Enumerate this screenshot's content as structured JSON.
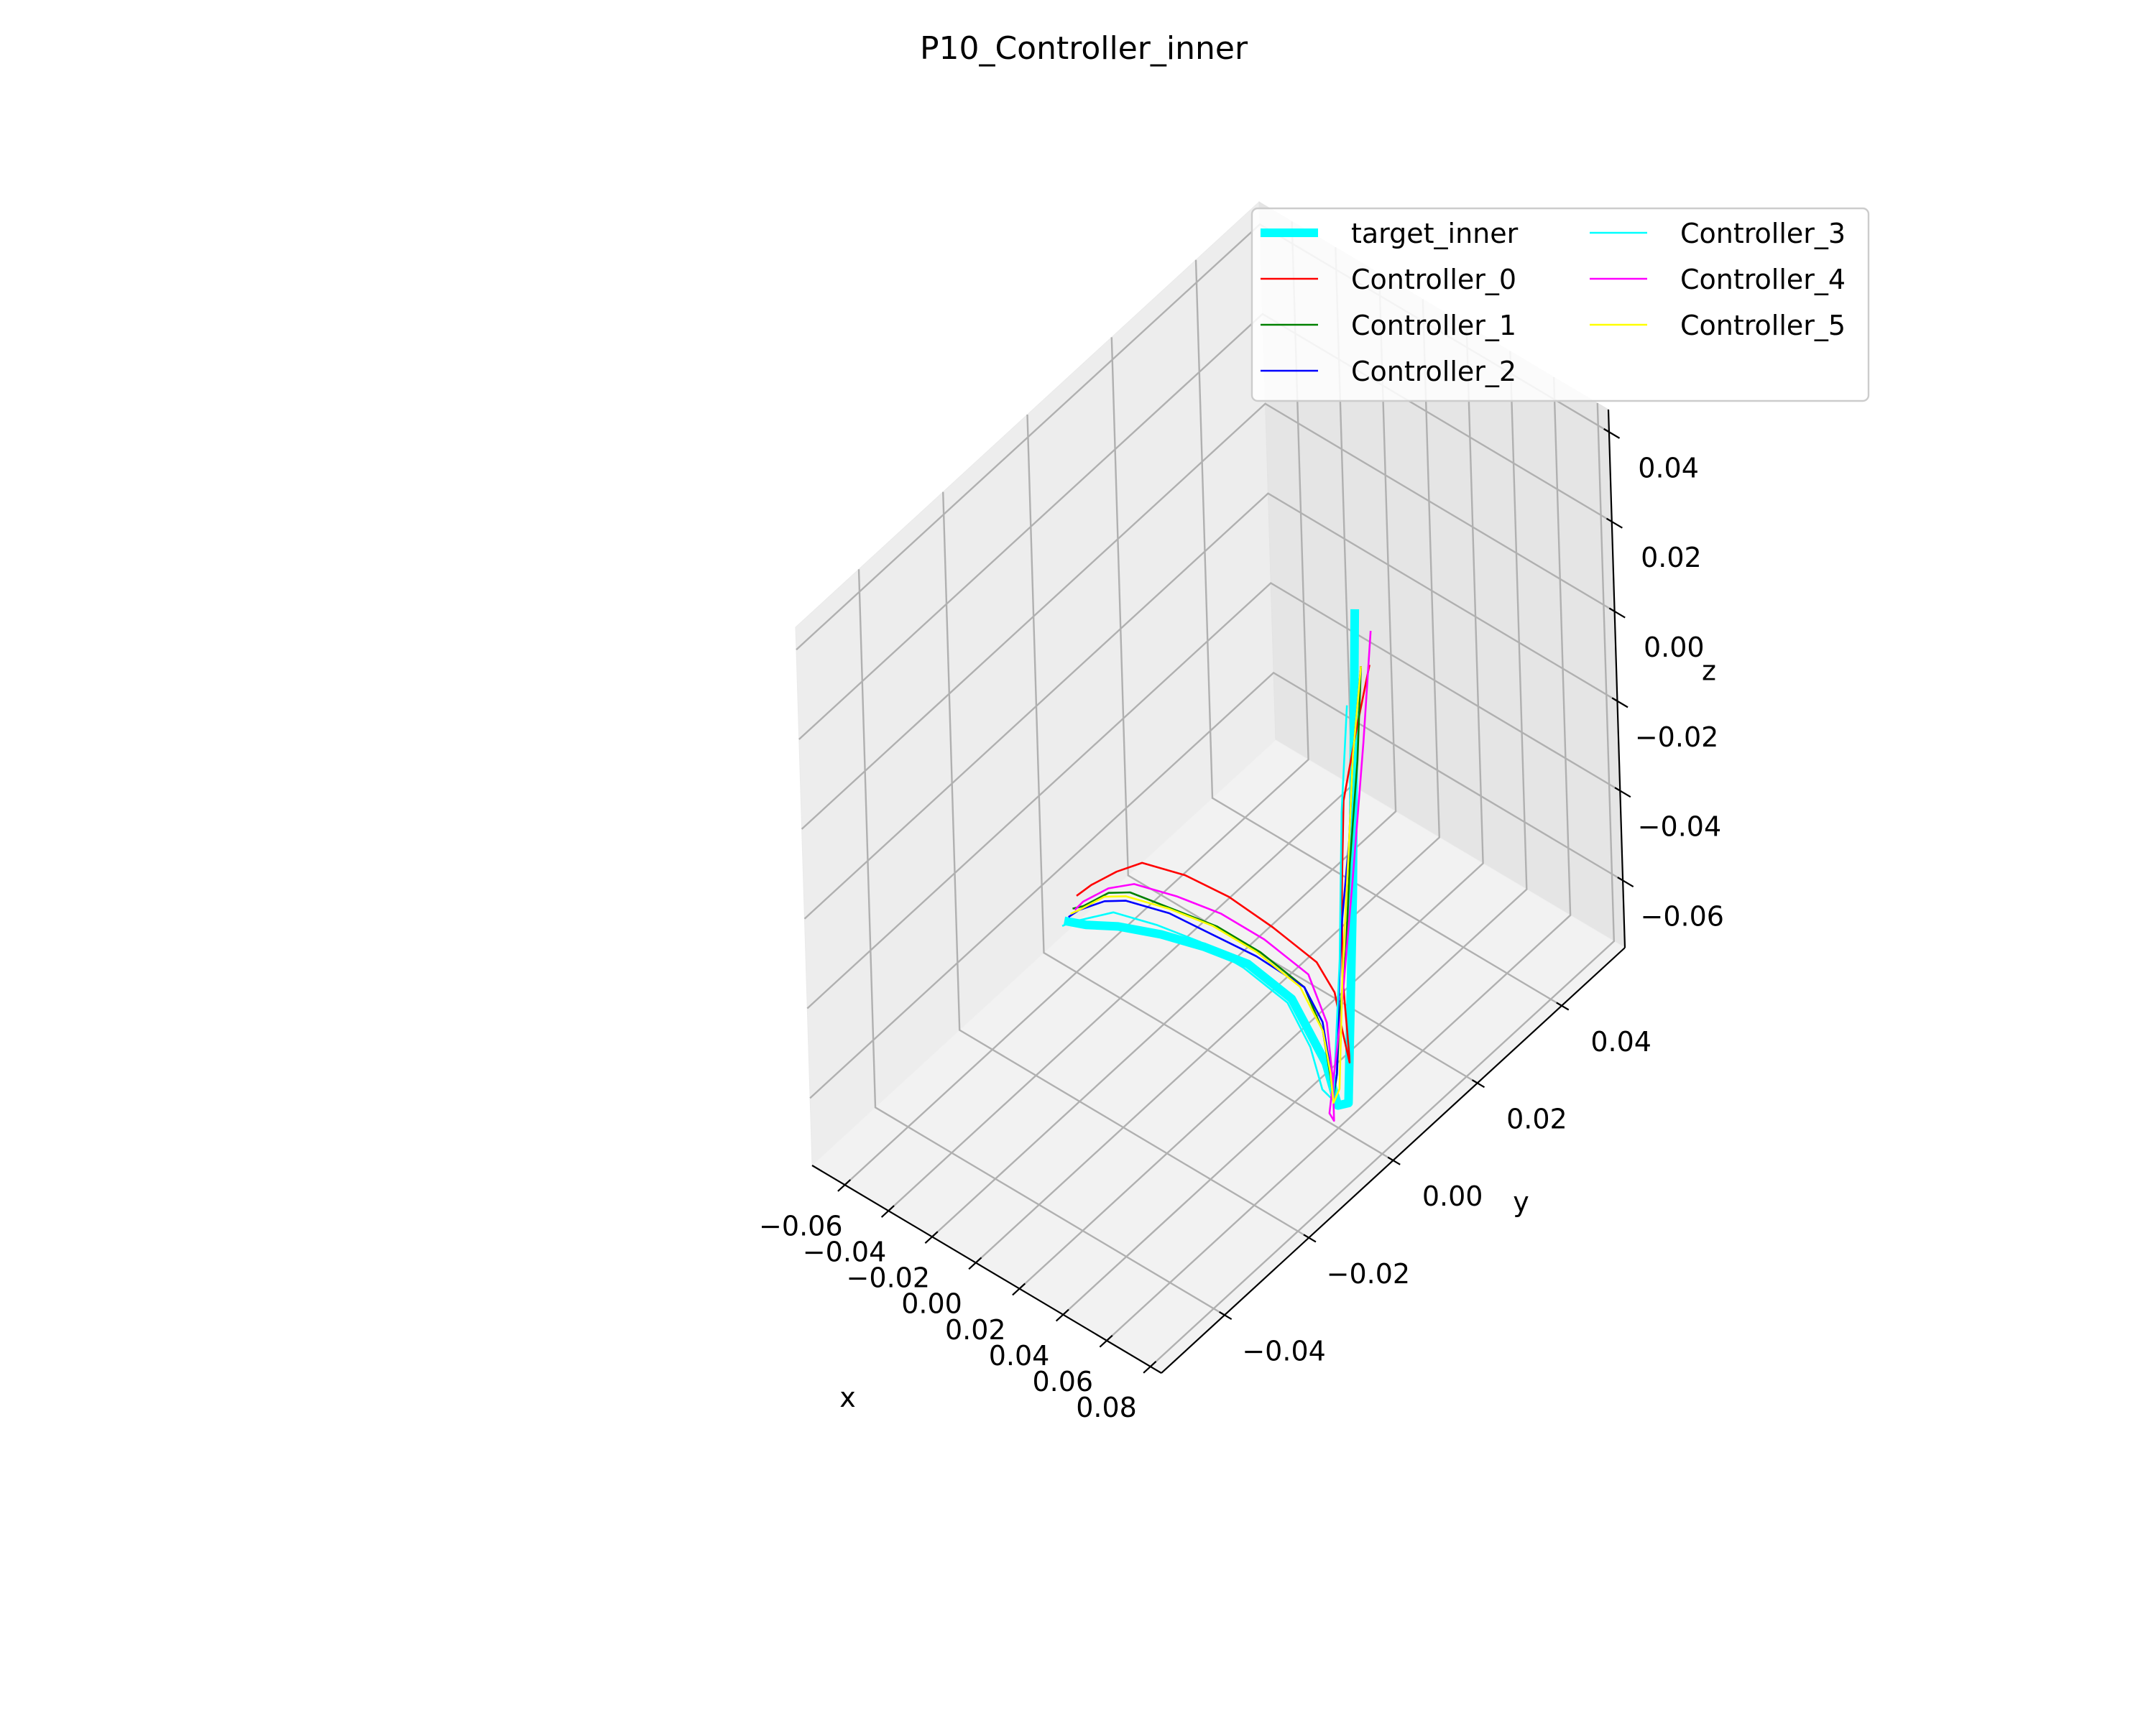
{
  "chart_data": {
    "type": "line",
    "projection": "3d",
    "title": "P10_Controller_inner",
    "xlabel": "x",
    "ylabel": "y",
    "zlabel": "z",
    "xlim": [
      -0.075,
      0.085
    ],
    "ylim": [
      -0.055,
      0.055
    ],
    "zlim": [
      -0.075,
      0.045
    ],
    "xticks": [
      -0.06,
      -0.04,
      -0.02,
      0.0,
      0.02,
      0.04,
      0.06,
      0.08
    ],
    "yticks": [
      -0.04,
      -0.02,
      0.0,
      0.02,
      0.04
    ],
    "zticks": [
      -0.06,
      -0.04,
      -0.02,
      0.0,
      0.02,
      0.04
    ],
    "xtick_labels": [
      "−0.06",
      "−0.04",
      "−0.02",
      "0.00",
      "0.02",
      "0.04",
      "0.06",
      "0.08"
    ],
    "ytick_labels": [
      "−0.04",
      "−0.02",
      "0.00",
      "0.02",
      "0.04"
    ],
    "ztick_labels": [
      "−0.06",
      "−0.04",
      "−0.02",
      "0.00",
      "0.02",
      "0.04"
    ],
    "grid": true,
    "legend_position": "top-right",
    "legend_columns": 2,
    "series": [
      {
        "name": "target_inner",
        "color": "#00ffff",
        "linewidth": 12,
        "x": [
          -0.065,
          -0.055,
          -0.04,
          -0.02,
          0.0,
          0.02,
          0.04,
          0.055,
          0.06,
          0.065,
          0.07,
          0.075
        ],
        "y": [
          0.0,
          0.0,
          0.0,
          0.0,
          0.0,
          0.0,
          0.0,
          0.0,
          0.0,
          0.0,
          0.0,
          0.0
        ],
        "z": [
          -0.065,
          -0.063,
          -0.059,
          -0.055,
          -0.052,
          -0.05,
          -0.052,
          -0.062,
          -0.07,
          -0.068,
          -0.02,
          0.045
        ]
      },
      {
        "name": "Controller_0",
        "color": "#ff0000",
        "linewidth": 2.6,
        "x": [
          -0.065,
          -0.06,
          -0.05,
          -0.04,
          -0.02,
          0.0,
          0.02,
          0.04,
          0.05,
          0.055,
          0.06,
          0.062,
          0.064,
          0.065,
          0.067,
          0.07,
          0.075
        ],
        "y": [
          0.003,
          0.004,
          0.005,
          0.006,
          0.006,
          0.006,
          0.006,
          0.006,
          0.005,
          0.004,
          0.003,
          0.002,
          0.0,
          0.0,
          0.0,
          0.002,
          0.003
        ],
        "z": [
          -0.062,
          -0.059,
          -0.054,
          -0.05,
          -0.047,
          -0.046,
          -0.047,
          -0.049,
          -0.052,
          -0.058,
          -0.063,
          -0.06,
          -0.04,
          -0.02,
          0.0,
          0.015,
          0.03
        ]
      },
      {
        "name": "Controller_1",
        "color": "#008000",
        "linewidth": 2.6,
        "x": [
          -0.065,
          -0.06,
          -0.05,
          -0.04,
          -0.02,
          0.0,
          0.02,
          0.04,
          0.05,
          0.055,
          0.058,
          0.06,
          0.062,
          0.064,
          0.067,
          0.07,
          0.073
        ],
        "y": [
          0.002,
          0.002,
          0.003,
          0.003,
          0.003,
          0.003,
          0.003,
          0.003,
          0.002,
          0.001,
          0.0,
          0.0,
          0.0,
          0.001,
          0.001,
          0.002,
          0.002
        ],
        "z": [
          -0.064,
          -0.062,
          -0.057,
          -0.054,
          -0.052,
          -0.05,
          -0.05,
          -0.052,
          -0.058,
          -0.066,
          -0.069,
          -0.063,
          -0.05,
          -0.035,
          -0.015,
          0.008,
          0.03
        ]
      },
      {
        "name": "Controller_2",
        "color": "#0000ff",
        "linewidth": 2.6,
        "x": [
          -0.065,
          -0.06,
          -0.05,
          -0.04,
          -0.02,
          0.0,
          0.02,
          0.04,
          0.05,
          0.055,
          0.058,
          0.06,
          0.062,
          0.064,
          0.067,
          0.07,
          0.073
        ],
        "y": [
          0.001,
          0.001,
          0.002,
          0.002,
          0.002,
          0.002,
          0.002,
          0.003,
          0.002,
          0.001,
          0.0,
          0.0,
          0.0,
          0.0,
          0.001,
          0.001,
          0.002
        ],
        "z": [
          -0.065,
          -0.062,
          -0.058,
          -0.055,
          -0.052,
          -0.051,
          -0.05,
          -0.052,
          -0.056,
          -0.064,
          -0.068,
          -0.063,
          -0.045,
          -0.03,
          -0.01,
          0.01,
          0.03
        ]
      },
      {
        "name": "Controller_3",
        "color": "#00ffff",
        "linewidth": 2.6,
        "x": [
          -0.064,
          -0.06,
          -0.05,
          -0.04,
          -0.02,
          0.0,
          0.02,
          0.04,
          0.05,
          0.055,
          0.06,
          0.065,
          0.07,
          0.074
        ],
        "y": [
          -0.001,
          -0.001,
          -0.001,
          -0.001,
          -0.001,
          -0.001,
          -0.001,
          -0.001,
          -0.001,
          -0.001,
          -0.001,
          -0.001,
          -0.002,
          -0.002
        ],
        "z": [
          -0.065,
          -0.063,
          -0.059,
          -0.055,
          -0.052,
          -0.05,
          -0.05,
          -0.052,
          -0.059,
          -0.067,
          -0.068,
          -0.035,
          0.0,
          0.025
        ]
      },
      {
        "name": "Controller_4",
        "color": "#ff00ff",
        "linewidth": 2.6,
        "x": [
          -0.064,
          -0.06,
          -0.05,
          -0.04,
          -0.02,
          0.0,
          0.02,
          0.04,
          0.05,
          0.054,
          0.058,
          0.06,
          0.063,
          0.066,
          0.069,
          0.072
        ],
        "y": [
          0.002,
          0.002,
          0.003,
          0.004,
          0.004,
          0.004,
          0.004,
          0.004,
          0.003,
          0.002,
          0.0,
          -0.002,
          0.0,
          0.002,
          0.004,
          0.005
        ],
        "z": [
          -0.064,
          -0.061,
          -0.056,
          -0.053,
          -0.05,
          -0.048,
          -0.048,
          -0.05,
          -0.057,
          -0.068,
          -0.074,
          -0.07,
          -0.048,
          -0.02,
          0.01,
          0.035
        ]
      },
      {
        "name": "Controller_5",
        "color": "#ffff00",
        "linewidth": 2.6,
        "x": [
          -0.064,
          -0.06,
          -0.05,
          -0.04,
          -0.02,
          0.0,
          0.02,
          0.04,
          0.05,
          0.055,
          0.058,
          0.061,
          0.064,
          0.067,
          0.07,
          0.073
        ],
        "y": [
          0.001,
          0.001,
          0.002,
          0.002,
          0.002,
          0.002,
          0.002,
          0.002,
          0.002,
          0.001,
          0.0,
          0.0,
          0.0,
          0.001,
          0.001,
          0.002
        ],
        "z": [
          -0.064,
          -0.062,
          -0.057,
          -0.054,
          -0.051,
          -0.049,
          -0.049,
          -0.051,
          -0.058,
          -0.065,
          -0.07,
          -0.066,
          -0.04,
          -0.01,
          0.01,
          0.03
        ]
      }
    ]
  }
}
